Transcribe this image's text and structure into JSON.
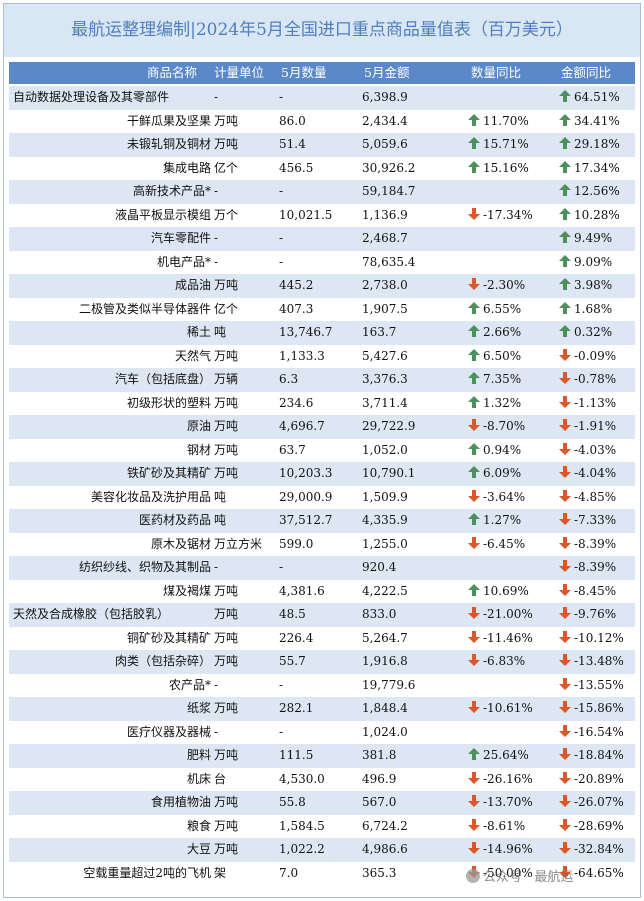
{
  "title": "最航运整理编制|2024年5月全国进口重点商品量值表（百万美元）",
  "header": {
    "name": "商品名称",
    "unit": "计量单位",
    "qty": "5月数量",
    "amt": "5月金额",
    "qty_yoy": "数量同比",
    "amt_yoy": "金额同比"
  },
  "colors": {
    "up": "#4e8f5e",
    "down": "#d9572b",
    "header_bg": "#5b88c9",
    "title_bg": "#d9e6f3"
  },
  "rows": [
    {
      "name": "自动数据处理设备及其零部件",
      "unit": "-",
      "qty": "-",
      "amt": "6,398.9",
      "qty_yoy": "",
      "qty_dir": "",
      "amt_yoy": "64.51%",
      "amt_dir": "up",
      "align": "left"
    },
    {
      "name": "干鲜瓜果及坚果",
      "unit": "万吨",
      "qty": "86.0",
      "amt": "2,434.4",
      "qty_yoy": "11.70%",
      "qty_dir": "up",
      "amt_yoy": "34.41%",
      "amt_dir": "up"
    },
    {
      "name": "未锻轧铜及铜材",
      "unit": "万吨",
      "qty": "51.4",
      "amt": "5,059.6",
      "qty_yoy": "15.71%",
      "qty_dir": "up",
      "amt_yoy": "29.18%",
      "amt_dir": "up"
    },
    {
      "name": "集成电路",
      "unit": "亿个",
      "qty": "456.5",
      "amt": "30,926.2",
      "qty_yoy": "15.16%",
      "qty_dir": "up",
      "amt_yoy": "17.34%",
      "amt_dir": "up"
    },
    {
      "name": "高新技术产品*",
      "unit": "-",
      "qty": "-",
      "amt": "59,184.7",
      "qty_yoy": "",
      "qty_dir": "",
      "amt_yoy": "12.56%",
      "amt_dir": "up"
    },
    {
      "name": "液晶平板显示模组",
      "unit": "万个",
      "qty": "10,021.5",
      "amt": "1,136.9",
      "qty_yoy": "-17.34%",
      "qty_dir": "down",
      "amt_yoy": "10.28%",
      "amt_dir": "up"
    },
    {
      "name": "汽车零配件",
      "unit": "-",
      "qty": "-",
      "amt": "2,468.7",
      "qty_yoy": "",
      "qty_dir": "",
      "amt_yoy": "9.49%",
      "amt_dir": "up"
    },
    {
      "name": "机电产品*",
      "unit": "-",
      "qty": "-",
      "amt": "78,635.4",
      "qty_yoy": "",
      "qty_dir": "",
      "amt_yoy": "9.09%",
      "amt_dir": "up"
    },
    {
      "name": "成品油",
      "unit": "万吨",
      "qty": "445.2",
      "amt": "2,738.0",
      "qty_yoy": "-2.30%",
      "qty_dir": "down",
      "amt_yoy": "3.98%",
      "amt_dir": "up"
    },
    {
      "name": "二极管及类似半导体器件",
      "unit": "亿个",
      "qty": "407.3",
      "amt": "1,907.5",
      "qty_yoy": "6.55%",
      "qty_dir": "up",
      "amt_yoy": "1.68%",
      "amt_dir": "up"
    },
    {
      "name": "稀土",
      "unit": "吨",
      "qty": "13,746.7",
      "amt": "163.7",
      "qty_yoy": "2.66%",
      "qty_dir": "up",
      "amt_yoy": "0.32%",
      "amt_dir": "up"
    },
    {
      "name": "天然气",
      "unit": "万吨",
      "qty": "1,133.3",
      "amt": "5,427.6",
      "qty_yoy": "6.50%",
      "qty_dir": "up",
      "amt_yoy": "-0.09%",
      "amt_dir": "down"
    },
    {
      "name": "汽车（包括底盘）",
      "unit": "万辆",
      "qty": "6.3",
      "amt": "3,376.3",
      "qty_yoy": "7.35%",
      "qty_dir": "up",
      "amt_yoy": "-0.78%",
      "amt_dir": "down"
    },
    {
      "name": "初级形状的塑料",
      "unit": "万吨",
      "qty": "234.6",
      "amt": "3,711.4",
      "qty_yoy": "1.32%",
      "qty_dir": "up",
      "amt_yoy": "-1.13%",
      "amt_dir": "down"
    },
    {
      "name": "原油",
      "unit": "万吨",
      "qty": "4,696.7",
      "amt": "29,722.9",
      "qty_yoy": "-8.70%",
      "qty_dir": "down",
      "amt_yoy": "-1.91%",
      "amt_dir": "down"
    },
    {
      "name": "钢材",
      "unit": "万吨",
      "qty": "63.7",
      "amt": "1,052.0",
      "qty_yoy": "0.94%",
      "qty_dir": "up",
      "amt_yoy": "-4.03%",
      "amt_dir": "down"
    },
    {
      "name": "铁矿砂及其精矿",
      "unit": "万吨",
      "qty": "10,203.3",
      "amt": "10,790.1",
      "qty_yoy": "6.09%",
      "qty_dir": "up",
      "amt_yoy": "-4.04%",
      "amt_dir": "down"
    },
    {
      "name": "美容化妆品及洗护用品",
      "unit": "吨",
      "qty": "29,000.9",
      "amt": "1,509.9",
      "qty_yoy": "-3.64%",
      "qty_dir": "down",
      "amt_yoy": "-4.85%",
      "amt_dir": "down"
    },
    {
      "name": "医药材及药品",
      "unit": "吨",
      "qty": "37,512.7",
      "amt": "4,335.9",
      "qty_yoy": "1.27%",
      "qty_dir": "up",
      "amt_yoy": "-7.33%",
      "amt_dir": "down"
    },
    {
      "name": "原木及锯材",
      "unit": "万立方米",
      "qty": "599.0",
      "amt": "1,255.0",
      "qty_yoy": "-6.45%",
      "qty_dir": "down",
      "amt_yoy": "-8.39%",
      "amt_dir": "down"
    },
    {
      "name": "纺织纱线、织物及其制品",
      "unit": "-",
      "qty": "-",
      "amt": "920.4",
      "qty_yoy": "",
      "qty_dir": "",
      "amt_yoy": "-8.39%",
      "amt_dir": "down"
    },
    {
      "name": "煤及褐煤",
      "unit": "万吨",
      "qty": "4,381.6",
      "amt": "4,222.5",
      "qty_yoy": "10.69%",
      "qty_dir": "up",
      "amt_yoy": "-8.45%",
      "amt_dir": "down"
    },
    {
      "name": "天然及合成橡胶（包括胶乳）",
      "unit": "万吨",
      "qty": "48.5",
      "amt": "833.0",
      "qty_yoy": "-21.00%",
      "qty_dir": "down",
      "amt_yoy": "-9.76%",
      "amt_dir": "down",
      "align": "left"
    },
    {
      "name": "铜矿砂及其精矿",
      "unit": "万吨",
      "qty": "226.4",
      "amt": "5,264.7",
      "qty_yoy": "-11.46%",
      "qty_dir": "down",
      "amt_yoy": "-10.12%",
      "amt_dir": "down"
    },
    {
      "name": "肉类（包括杂碎）",
      "unit": "万吨",
      "qty": "55.7",
      "amt": "1,916.8",
      "qty_yoy": "-6.83%",
      "qty_dir": "down",
      "amt_yoy": "-13.48%",
      "amt_dir": "down"
    },
    {
      "name": "农产品*",
      "unit": "-",
      "qty": "-",
      "amt": "19,779.6",
      "qty_yoy": "",
      "qty_dir": "",
      "amt_yoy": "-13.55%",
      "amt_dir": "down"
    },
    {
      "name": "纸浆",
      "unit": "万吨",
      "qty": "282.1",
      "amt": "1,848.4",
      "qty_yoy": "-10.61%",
      "qty_dir": "down",
      "amt_yoy": "-15.86%",
      "amt_dir": "down"
    },
    {
      "name": "医疗仪器及器械",
      "unit": "-",
      "qty": "-",
      "amt": "1,024.0",
      "qty_yoy": "",
      "qty_dir": "",
      "amt_yoy": "-16.54%",
      "amt_dir": "down"
    },
    {
      "name": "肥料",
      "unit": "万吨",
      "qty": "111.5",
      "amt": "381.8",
      "qty_yoy": "25.64%",
      "qty_dir": "up",
      "amt_yoy": "-18.84%",
      "amt_dir": "down"
    },
    {
      "name": "机床",
      "unit": "台",
      "qty": "4,530.0",
      "amt": "496.9",
      "qty_yoy": "-26.16%",
      "qty_dir": "down",
      "amt_yoy": "-20.89%",
      "amt_dir": "down"
    },
    {
      "name": "食用植物油",
      "unit": "万吨",
      "qty": "55.8",
      "amt": "567.0",
      "qty_yoy": "-13.70%",
      "qty_dir": "down",
      "amt_yoy": "-26.07%",
      "amt_dir": "down"
    },
    {
      "name": "粮食",
      "unit": "万吨",
      "qty": "1,584.5",
      "amt": "6,724.2",
      "qty_yoy": "-8.61%",
      "qty_dir": "down",
      "amt_yoy": "-28.69%",
      "amt_dir": "down"
    },
    {
      "name": "大豆",
      "unit": "万吨",
      "qty": "1,022.2",
      "amt": "4,986.6",
      "qty_yoy": "-14.96%",
      "qty_dir": "down",
      "amt_yoy": "-32.84%",
      "amt_dir": "down"
    },
    {
      "name": "空载重量超过2吨的飞机",
      "unit": "架",
      "qty": "7.0",
      "amt": "365.3",
      "qty_yoy": "-50.00%",
      "qty_dir": "down",
      "amt_yoy": "-64.65%",
      "amt_dir": "down"
    }
  ],
  "watermark": "公众号 · 最航运"
}
